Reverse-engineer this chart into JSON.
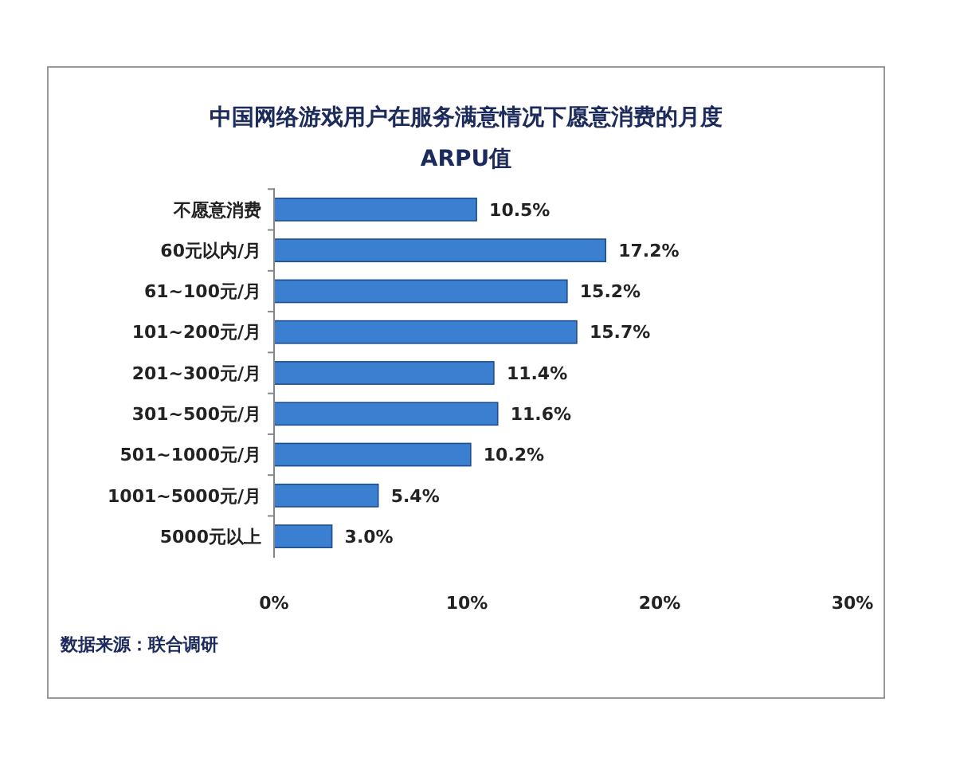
{
  "chart_data": {
    "type": "bar",
    "orientation": "horizontal",
    "title": "中国网络游戏用户在服务满意情况下愿意消费的月度",
    "subtitle": "ARPU值",
    "categories": [
      "不愿意消费",
      "60元以内/月",
      "61~100元/月",
      "101~200元/月",
      "201~300元/月",
      "301~500元/月",
      "501~1000元/月",
      "1001~5000元/月",
      "5000元以上"
    ],
    "values": [
      10.5,
      17.2,
      15.2,
      15.7,
      11.4,
      11.6,
      10.2,
      5.4,
      3.0
    ],
    "value_labels": [
      "10.5%",
      "17.2%",
      "15.2%",
      "15.7%",
      "11.4%",
      "11.6%",
      "10.2%",
      "5.4%",
      "3.0%"
    ],
    "color": "#3b7fd0",
    "xlim": [
      0,
      30
    ],
    "xticks": [
      {
        "value": 0,
        "label": "0%"
      },
      {
        "value": 10,
        "label": "10%"
      },
      {
        "value": 20,
        "label": "20%"
      },
      {
        "value": 30,
        "label": "30%"
      }
    ],
    "grid": false,
    "annotations": [
      "数据来源：联合调研"
    ]
  }
}
